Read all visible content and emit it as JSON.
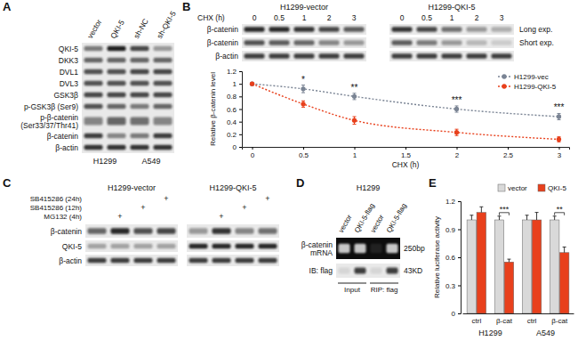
{
  "panel_labels": [
    "A",
    "B",
    "C",
    "D",
    "E"
  ],
  "blots": {
    "A": {
      "lanes": [
        "vector",
        "QKI-5",
        "sh-NC",
        "sh-QKI-5"
      ],
      "groups": [
        "H1299",
        "A549"
      ],
      "rows": [
        {
          "label": "QKI-5",
          "intensity": [
            0.5,
            0.95,
            0.75,
            0.35
          ]
        },
        {
          "label": "DKK3",
          "intensity": [
            0.6,
            0.6,
            0.6,
            0.6
          ]
        },
        {
          "label": "DVL1",
          "intensity": [
            0.7,
            0.7,
            0.75,
            0.75
          ]
        },
        {
          "label": "DVL3",
          "intensity": [
            0.7,
            0.7,
            0.7,
            0.7
          ]
        },
        {
          "label": "GSK3β",
          "intensity": [
            0.75,
            0.75,
            0.75,
            0.75
          ]
        },
        {
          "label": "p-GSK3β (Ser9)",
          "intensity": [
            0.7,
            0.6,
            0.5,
            0.6
          ]
        },
        {
          "label": [
            "p-β-catenin",
            "(Ser33/37/Thr41)"
          ],
          "intensity": [
            0.45,
            0.6,
            0.55,
            0.45
          ]
        },
        {
          "label": "β-catenin",
          "intensity": [
            0.8,
            0.45,
            0.5,
            0.8
          ]
        },
        {
          "label": "β-actin",
          "intensity": [
            0.85,
            0.85,
            0.85,
            0.85
          ]
        }
      ]
    },
    "B": {
      "groups": [
        "H1299-vector",
        "H1299-QKI-5"
      ],
      "lane_header": "CHX (h)",
      "lanes": [
        0,
        0.5,
        1,
        2,
        3,
        0,
        0.5,
        1,
        2,
        3
      ],
      "rows": [
        {
          "label": "β-catenin",
          "note": "Long exp.",
          "intensity": [
            0.9,
            0.9,
            0.85,
            0.75,
            0.65,
            0.85,
            0.75,
            0.55,
            0.35,
            0.25
          ]
        },
        {
          "label": "β-catenin",
          "note": "Short exp.",
          "intensity": [
            0.7,
            0.65,
            0.6,
            0.45,
            0.35,
            0.65,
            0.5,
            0.35,
            0.2,
            0.1
          ]
        },
        {
          "label": "β-actin",
          "intensity": [
            0.8,
            0.8,
            0.8,
            0.8,
            0.8,
            0.8,
            0.8,
            0.8,
            0.8,
            0.8
          ]
        }
      ]
    },
    "C": {
      "groups": [
        "H1299-vector",
        "H1299-QKI-5"
      ],
      "treatments": [
        {
          "label": "SB415286 (24h)",
          "marks": [
            null,
            null,
            null,
            "+",
            null,
            null,
            null,
            "+"
          ]
        },
        {
          "label": "SB415286 (12h)",
          "marks": [
            null,
            null,
            "+",
            null,
            null,
            null,
            "+",
            null
          ]
        },
        {
          "label": "MG132 (4h)",
          "marks": [
            null,
            "+",
            null,
            null,
            null,
            "+",
            null,
            null
          ]
        }
      ],
      "rows": [
        {
          "label": "β-catenin",
          "intensity": [
            0.6,
            0.9,
            0.7,
            0.75,
            0.35,
            0.85,
            0.45,
            0.55
          ]
        },
        {
          "label": "QKI-5",
          "intensity": [
            0.3,
            0.3,
            0.3,
            0.3,
            0.9,
            0.9,
            0.9,
            0.9
          ]
        },
        {
          "label": "β-actin",
          "intensity": [
            0.8,
            0.8,
            0.8,
            0.8,
            0.8,
            0.8,
            0.8,
            0.8
          ]
        }
      ]
    },
    "D": {
      "cell": "H1299",
      "lanes": [
        "vector",
        "QKI-5-flag",
        "vector",
        "QKI-5-flag"
      ],
      "lane_groups": [
        "Input",
        "RIP: flag"
      ],
      "rows": [
        {
          "label": [
            "β-catenin",
            "mRNA"
          ],
          "size_label": "250bp",
          "intensity": [
            0.8,
            0.8,
            0.05,
            0.8
          ]
        },
        {
          "label": "IB: flag",
          "size_label": "43KD",
          "intensity": [
            0.05,
            0.8,
            0.05,
            0.8
          ]
        }
      ]
    }
  },
  "chart_data": [
    {
      "type": "line",
      "x_label": "CHX (h)",
      "y_label": "Relative β-catenin level",
      "x": [
        0,
        0.5,
        1,
        2,
        3
      ],
      "xlim": [
        -0.1,
        3.1
      ],
      "xticks": [
        0,
        0.5,
        1,
        1.5,
        2,
        2.5,
        3
      ],
      "ylim": [
        0,
        1.2
      ],
      "yticks": [
        0,
        0.2,
        0.4,
        0.6,
        0.8,
        1,
        1.2
      ],
      "legend": "upper right",
      "series": [
        {
          "name": "H1299-vec",
          "color": "#7a8494",
          "marker": "circle",
          "line_style": "dotted",
          "values": [
            1,
            0.92,
            0.8,
            0.6,
            0.48
          ],
          "errors": [
            0,
            0.06,
            0.05,
            0.05,
            0.05
          ]
        },
        {
          "name": "H1299-QKI-5",
          "color": "#e8401c",
          "marker": "circle",
          "line_style": "dotted",
          "values": [
            1,
            0.68,
            0.42,
            0.23,
            0.12
          ],
          "errors": [
            0,
            0.05,
            0.06,
            0.05,
            0.04
          ]
        }
      ],
      "annotations": [
        {
          "x": 0.5,
          "text": "*"
        },
        {
          "x": 1,
          "text": "**"
        },
        {
          "x": 2,
          "text": "***"
        },
        {
          "x": 3,
          "text": "***"
        }
      ]
    },
    {
      "type": "bar",
      "y_label": "Relative luciferase activity",
      "categories": [
        "ctrl",
        "β-cat",
        "ctrl",
        "β-cat"
      ],
      "group_labels": [
        "H1299",
        "A549"
      ],
      "ylim": [
        0,
        1.2
      ],
      "yticks": [
        0,
        0.3,
        0.6,
        0.9,
        1.2
      ],
      "legend": "top",
      "series": [
        {
          "name": "vector",
          "color": "#d9d9d9",
          "values": [
            1,
            1,
            1,
            1
          ],
          "errors": [
            0.05,
            0.04,
            0.05,
            0.04
          ]
        },
        {
          "name": "QKI-5",
          "color": "#e8401c",
          "values": [
            1.08,
            0.55,
            1,
            0.65
          ],
          "errors": [
            0.06,
            0.03,
            0.08,
            0.06
          ]
        }
      ],
      "annotations": [
        {
          "category": 1,
          "text": "***"
        },
        {
          "category": 3,
          "text": "**"
        }
      ]
    }
  ]
}
